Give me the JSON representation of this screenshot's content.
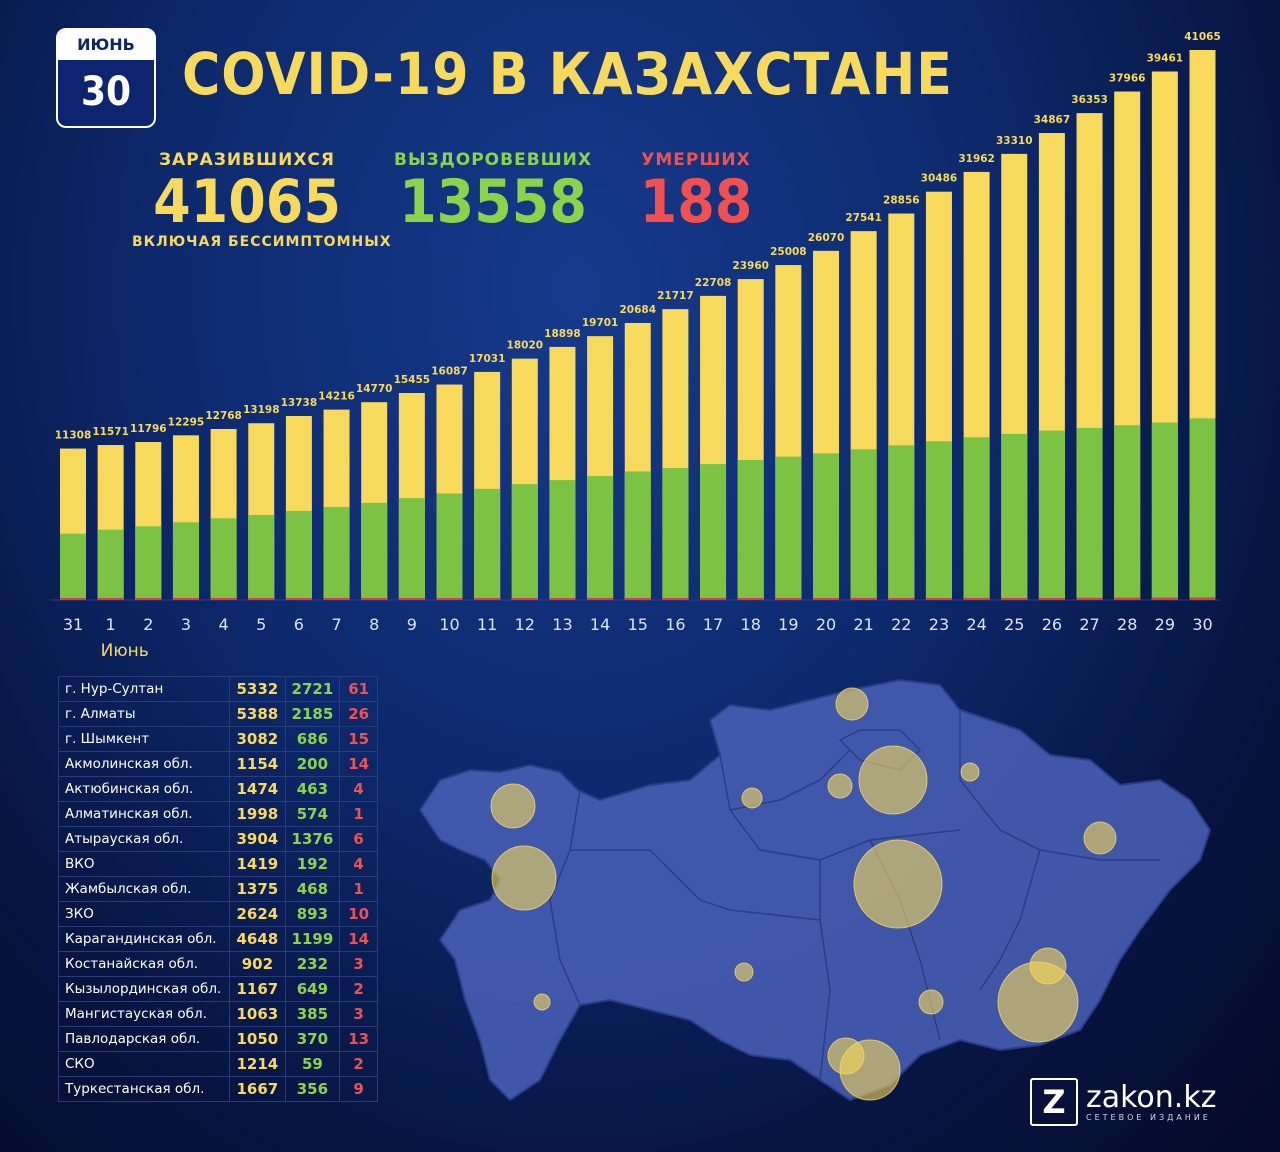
{
  "calendar": {
    "month": "ИЮНЬ",
    "day": "30"
  },
  "title": "COVID-19 В КАЗАХСТАНЕ",
  "stats": {
    "infected": {
      "label": "ЗАРАЗИВШИХСЯ",
      "value": "41065",
      "note": "включая бессимптомных"
    },
    "recovered": {
      "label": "ВЫЗДОРОВЕВШИХ",
      "value": "13558"
    },
    "deaths": {
      "label": "УМЕРШИХ",
      "value": "188"
    }
  },
  "colors": {
    "infected": "#f7d95c",
    "recovered": "#7cc243",
    "deaths": "#e53935",
    "month_label": "#f7d95c"
  },
  "chart_data": {
    "type": "bar",
    "categories": [
      "31",
      "1",
      "2",
      "3",
      "4",
      "5",
      "6",
      "7",
      "8",
      "9",
      "10",
      "11",
      "12",
      "13",
      "14",
      "15",
      "16",
      "17",
      "18",
      "19",
      "20",
      "21",
      "22",
      "23",
      "24",
      "25",
      "26",
      "27",
      "28",
      "29",
      "30"
    ],
    "month_label": "Июнь",
    "series": [
      {
        "values": [
          11308,
          11571,
          11796,
          12295,
          12768,
          13198,
          13738,
          14216,
          14770,
          15455,
          16087,
          17031,
          18020,
          18898,
          19701,
          20684,
          21717,
          22708,
          23960,
          25008,
          26070,
          27541,
          28856,
          30486,
          31962,
          33310,
          34867,
          36353,
          37966,
          39461,
          41065
        ]
      },
      {
        "values": [
          4950,
          5250,
          5500,
          5800,
          6100,
          6350,
          6650,
          6950,
          7250,
          7600,
          7950,
          8300,
          8650,
          8950,
          9250,
          9600,
          9850,
          10150,
          10450,
          10700,
          10950,
          11250,
          11550,
          11850,
          12150,
          12400,
          12650,
          12850,
          13050,
          13250,
          13558
        ]
      },
      {
        "values": [
          55,
          56,
          56,
          58,
          58,
          60,
          64,
          66,
          68,
          70,
          72,
          74,
          76,
          78,
          80,
          82,
          84,
          86,
          90,
          96,
          100,
          104,
          108,
          116,
          124,
          134,
          148,
          160,
          170,
          180,
          188
        ]
      }
    ],
    "ylim": [
      0,
      41065
    ],
    "stacked": "overlay"
  },
  "regions": [
    {
      "name": "г. Нур-Султан",
      "infected": "5332",
      "recovered": "2721",
      "deaths": "61"
    },
    {
      "name": "г. Алматы",
      "infected": "5388",
      "recovered": "2185",
      "deaths": "26"
    },
    {
      "name": "г. Шымкент",
      "infected": "3082",
      "recovered": "686",
      "deaths": "15"
    },
    {
      "name": "Акмолинская обл.",
      "infected": "1154",
      "recovered": "200",
      "deaths": "14"
    },
    {
      "name": "Актюбинская обл.",
      "infected": "1474",
      "recovered": "463",
      "deaths": "4"
    },
    {
      "name": "Алматинская обл.",
      "infected": "1998",
      "recovered": "574",
      "deaths": "1"
    },
    {
      "name": "Атырауская обл.",
      "infected": "3904",
      "recovered": "1376",
      "deaths": "6"
    },
    {
      "name": "ВКО",
      "infected": "1419",
      "recovered": "192",
      "deaths": "4"
    },
    {
      "name": "Жамбылская обл.",
      "infected": "1375",
      "recovered": "468",
      "deaths": "1"
    },
    {
      "name": "ЗКО",
      "infected": "2624",
      "recovered": "893",
      "deaths": "10"
    },
    {
      "name": "Карагандинская обл.",
      "infected": "4648",
      "recovered": "1199",
      "deaths": "14"
    },
    {
      "name": "Костанайская обл.",
      "infected": "902",
      "recovered": "232",
      "deaths": "3"
    },
    {
      "name": "Кызылординская обл.",
      "infected": "1167",
      "recovered": "649",
      "deaths": "2"
    },
    {
      "name": "Мангистауская обл.",
      "infected": "1063",
      "recovered": "385",
      "deaths": "3"
    },
    {
      "name": "Павлодарская обл.",
      "infected": "1050",
      "recovered": "370",
      "deaths": "13"
    },
    {
      "name": "СКО",
      "infected": "1214",
      "recovered": "59",
      "deaths": "2"
    },
    {
      "name": "Туркестанская обл.",
      "infected": "1667",
      "recovered": "356",
      "deaths": "9"
    }
  ],
  "logo": {
    "letter": "Z",
    "name": "zakon.kz",
    "tagline": "СЕТЕВОЕ ИЗДАНИЕ"
  }
}
